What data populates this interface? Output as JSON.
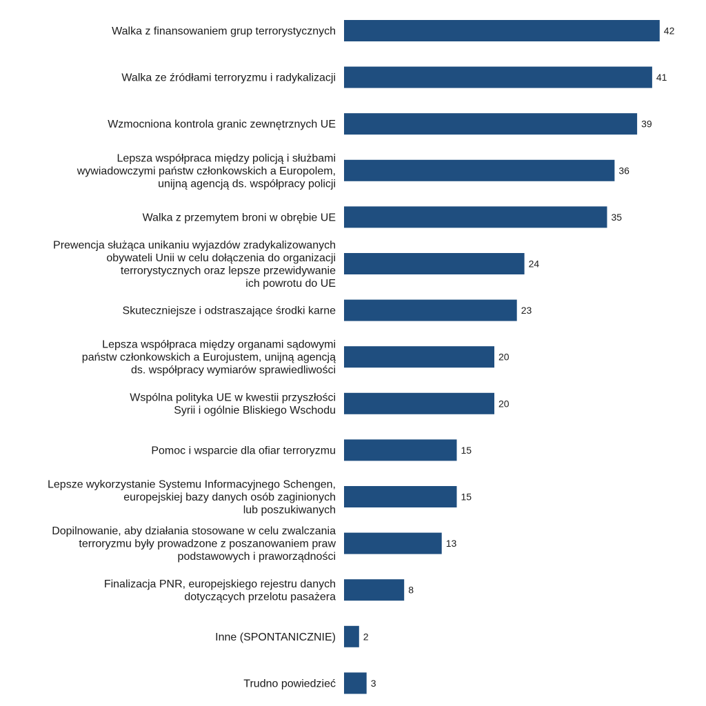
{
  "chart_data": {
    "type": "bar",
    "orientation": "horizontal",
    "title": "",
    "xlabel": "",
    "ylabel": "",
    "grid": false,
    "legend": "none",
    "bar_color": "#1f4e7f",
    "xlim": [
      0,
      42
    ],
    "categories": [
      [
        "Walka z finansowaniem grup terrorystycznych"
      ],
      [
        "Walka ze źródłami terroryzmu i radykalizacji"
      ],
      [
        "Wzmocniona kontrola granic zewnętrznych UE"
      ],
      [
        "Lepsza współpraca między policją i służbami",
        "wywiadowczymi państw członkowskich a Europolem,",
        "unijną agencją ds. współpracy policji"
      ],
      [
        "Walka z przemytem broni w obrębie UE"
      ],
      [
        "Prewencja służąca unikaniu wyjazdów zradykalizowanych",
        "obywateli Unii w celu dołączenia do organizacji",
        "terrorystycznych oraz lepsze przewidywanie",
        "ich powrotu do UE"
      ],
      [
        "Skuteczniejsze i odstraszające środki karne"
      ],
      [
        "Lepsza współpraca między organami sądowymi",
        "państw członkowskich a Eurojustem, unijną agencją",
        "ds. współpracy wymiarów sprawiedliwości"
      ],
      [
        "Wspólna polityka UE w kwestii przyszłości",
        "Syrii i ogólnie Bliskiego Wschodu"
      ],
      [
        "Pomoc i wsparcie dla ofiar terroryzmu"
      ],
      [
        "Lepsze wykorzystanie Systemu Informacyjnego Schengen,",
        "europejskiej bazy danych osób zaginionych",
        "lub poszukiwanych"
      ],
      [
        "Dopilnowanie, aby działania stosowane w celu zwalczania",
        "terroryzmu były prowadzone z poszanowaniem praw",
        "podstawowych i praworządności"
      ],
      [
        "Finalizacja PNR, europejskiego rejestru danych",
        "dotyczących przelotu pasażera"
      ],
      [
        "Inne (SPONTANICZNIE)"
      ],
      [
        "Trudno powiedzieć"
      ]
    ],
    "values": [
      42,
      41,
      39,
      36,
      35,
      24,
      23,
      20,
      20,
      15,
      15,
      13,
      8,
      2,
      3
    ]
  }
}
